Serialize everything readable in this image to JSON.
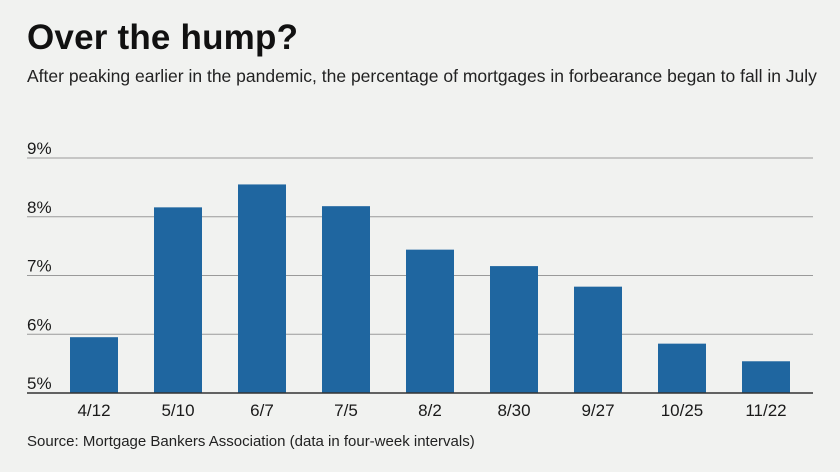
{
  "title": "Over the hump?",
  "subtitle": "After peaking earlier in the pandemic, the percentage of mortgages in forbearance began to fall in July",
  "source": "Source: Mortgage Bankers Association (data in four-week intervals)",
  "colors": {
    "bar": "#1f66a0",
    "grid": "#9a9a9a",
    "axis": "#333333",
    "background": "#f1f2f0"
  },
  "chart_data": {
    "type": "bar",
    "title": "Over the hump?",
    "xlabel": "",
    "ylabel": "",
    "categories": [
      "4/12",
      "5/10",
      "6/7",
      "7/5",
      "8/2",
      "8/30",
      "9/27",
      "10/25",
      "11/22"
    ],
    "values": [
      5.95,
      8.16,
      8.55,
      8.18,
      7.44,
      7.16,
      6.81,
      5.84,
      5.54
    ],
    "ylim": [
      5,
      9
    ],
    "yticks": [
      5,
      6,
      7,
      8,
      9
    ],
    "ytick_labels": [
      "5%",
      "6%",
      "7%",
      "8%",
      "9%"
    ],
    "grid": true,
    "legend": "none"
  }
}
